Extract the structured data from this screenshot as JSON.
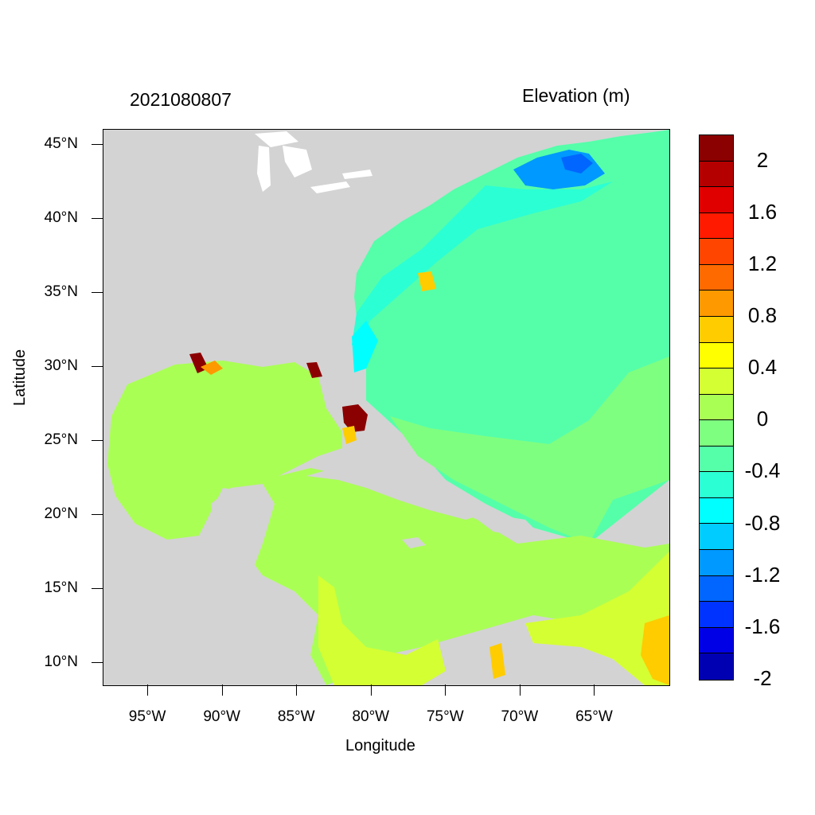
{
  "header": {
    "timestamp": "2021080807",
    "variable": "Elevation (m)"
  },
  "axes": {
    "xlabel": "Longitude",
    "ylabel": "Latitude",
    "lon_range": [
      -98,
      -60
    ],
    "lat_range": [
      8.5,
      46
    ],
    "x_ticks": [
      {
        "lon": -95,
        "label": "95°W"
      },
      {
        "lon": -90,
        "label": "90°W"
      },
      {
        "lon": -85,
        "label": "85°W"
      },
      {
        "lon": -80,
        "label": "80°W"
      },
      {
        "lon": -75,
        "label": "75°W"
      },
      {
        "lon": -70,
        "label": "70°W"
      },
      {
        "lon": -65,
        "label": "65°W"
      }
    ],
    "y_ticks": [
      {
        "lat": 45,
        "label": "45°N"
      },
      {
        "lat": 40,
        "label": "40°N"
      },
      {
        "lat": 35,
        "label": "35°N"
      },
      {
        "lat": 30,
        "label": "30°N"
      },
      {
        "lat": 25,
        "label": "25°N"
      },
      {
        "lat": 20,
        "label": "20°N"
      },
      {
        "lat": 15,
        "label": "15°N"
      },
      {
        "lat": 10,
        "label": "10°N"
      }
    ]
  },
  "colorbar": {
    "colors": [
      "#8b0000",
      "#b50000",
      "#e00000",
      "#ff1a00",
      "#ff4500",
      "#ff6a00",
      "#ff9900",
      "#ffcc00",
      "#ffff00",
      "#d4ff33",
      "#aaff55",
      "#7fff80",
      "#55ffaa",
      "#2bffd4",
      "#00ffff",
      "#00ccff",
      "#0099ff",
      "#0066ff",
      "#0033ff",
      "#0000e6",
      "#0000b3"
    ],
    "labels": [
      {
        "value": 2,
        "text": "2"
      },
      {
        "value": 1.6,
        "text": "1.6"
      },
      {
        "value": 1.2,
        "text": "1.2"
      },
      {
        "value": 0.8,
        "text": "0.8"
      },
      {
        "value": 0.4,
        "text": "0.4"
      },
      {
        "value": 0,
        "text": "0"
      },
      {
        "value": -0.4,
        "text": "-0.4"
      },
      {
        "value": -0.8,
        "text": "-0.8"
      },
      {
        "value": -1.2,
        "text": "-1.2"
      },
      {
        "value": -1.6,
        "text": "-1.6"
      },
      {
        "value": -2,
        "text": "-2"
      }
    ]
  },
  "map_colors": {
    "land": "#d3d3d3",
    "lakes": "#ffffff",
    "atlantic": "#55ffaa",
    "atlantic_south": "#7fff80",
    "gulf": "#aaff55",
    "caribbean_south": "#d4ff33",
    "gulf_of_maine": "#0099ff",
    "shelf": "#2bffd4",
    "surge_high": "#8b0000",
    "surge_mid": "#ffcc00"
  }
}
